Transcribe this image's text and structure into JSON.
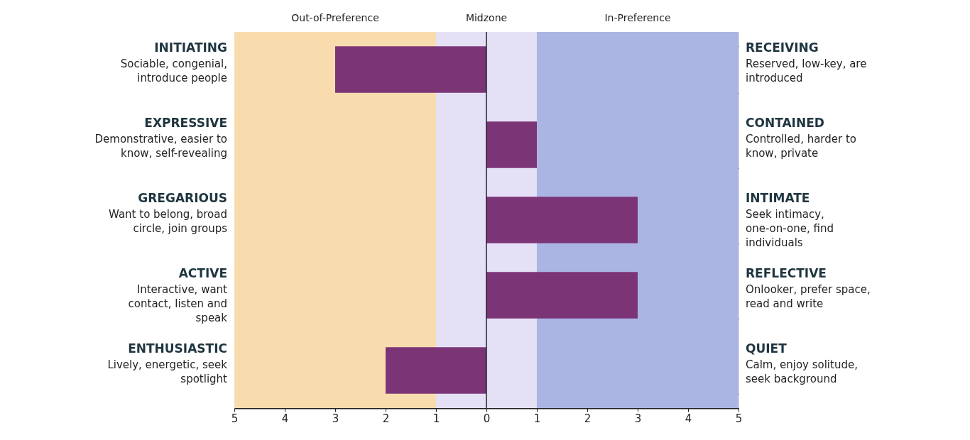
{
  "chart_data": {
    "type": "bar",
    "orientation": "horizontal",
    "categories": [
      "INITIATING",
      "EXPRESSIVE",
      "GREGARIOUS",
      "ACTIVE",
      "ENTHUSIASTIC"
    ],
    "y2_categories": [
      "RECEIVING",
      "CONTAINED",
      "INTIMATE",
      "REFLECTIVE",
      "QUIET"
    ],
    "values": [
      -3,
      1,
      3,
      3,
      -2
    ],
    "color": "#7b3577",
    "xlim": [
      -5,
      5
    ],
    "xticks": [
      {
        "value": -5,
        "label": "5"
      },
      {
        "value": -4,
        "label": "4"
      },
      {
        "value": -3,
        "label": "3"
      },
      {
        "value": -2,
        "label": "2"
      },
      {
        "value": -1,
        "label": "1"
      },
      0,
      1,
      2,
      3,
      4,
      5
    ],
    "bands": [
      {
        "axis": "x",
        "from": -5,
        "to": -1,
        "label": "Out-of-Preference",
        "color": "#f9dcae"
      },
      {
        "axis": "x",
        "from": -1,
        "to": 1,
        "label": "Midzone",
        "color": "#e4e0f5"
      },
      {
        "axis": "x",
        "from": 1,
        "to": 5,
        "label": "In-Preference",
        "color": "#aab5e4"
      }
    ],
    "ref_lines": [
      {
        "axis": "x",
        "value": 0,
        "color": "#222222"
      }
    ],
    "annotations": [
      "Sociable, congenial, introduce people",
      "Reserved, low-key, are introduced",
      "Demonstrative, easier to know, self-revealing",
      "Controlled, harder to know, private",
      "Want to belong, broad circle, join groups",
      "Seek intimacy, one-on-one, find individuals",
      "Interactive, want contact, listen and speak",
      "Onlooker, prefer space, read and write",
      "Lively, energetic, seek spotlight",
      "Calm, enjoy solitude, seek background"
    ],
    "grid": "y"
  }
}
